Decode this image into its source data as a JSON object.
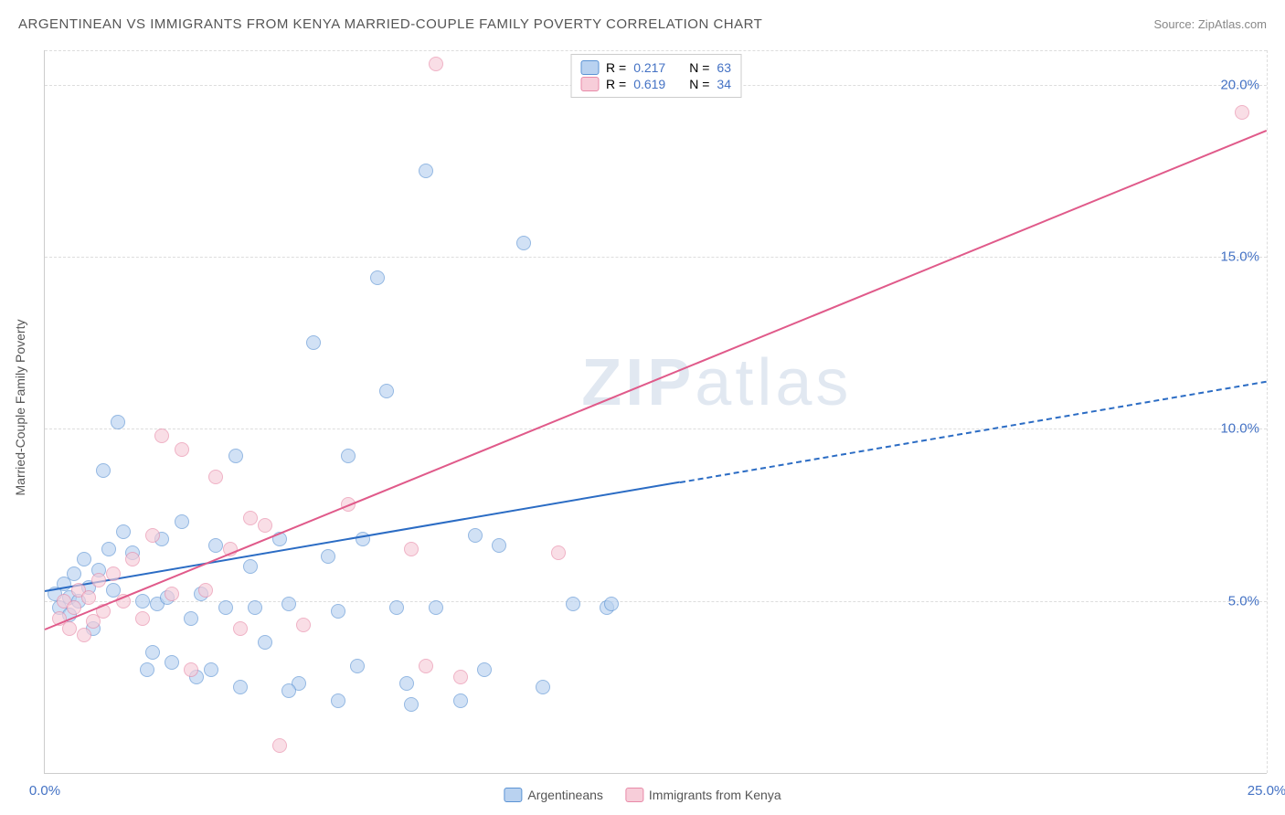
{
  "title": "ARGENTINEAN VS IMMIGRANTS FROM KENYA MARRIED-COUPLE FAMILY POVERTY CORRELATION CHART",
  "source": "Source: ZipAtlas.com",
  "ylabel": "Married-Couple Family Poverty",
  "watermark_a": "ZIP",
  "watermark_b": "atlas",
  "chart": {
    "type": "scatter",
    "xlim": [
      0,
      25
    ],
    "ylim": [
      0,
      21
    ],
    "x_ticks": [
      0,
      25
    ],
    "x_tick_labels": [
      "0.0%",
      "25.0%"
    ],
    "y_ticks": [
      5,
      10,
      15,
      20
    ],
    "y_tick_labels": [
      "5.0%",
      "10.0%",
      "15.0%",
      "20.0%"
    ],
    "grid_color": "#dddddd",
    "background_color": "#ffffff",
    "series": [
      {
        "id": "argentineans",
        "label": "Argentineans",
        "color_fill": "#b9d2f0",
        "color_stroke": "#5b93d4",
        "R": "0.217",
        "N": "63",
        "trend": {
          "x1": 0,
          "y1": 5.3,
          "x2": 25,
          "y2": 11.4,
          "solid_until_x": 13,
          "color": "#2b6cc4"
        },
        "points": [
          [
            0.2,
            5.2
          ],
          [
            0.3,
            4.8
          ],
          [
            0.4,
            5.5
          ],
          [
            0.5,
            5.1
          ],
          [
            0.5,
            4.6
          ],
          [
            0.6,
            5.8
          ],
          [
            0.7,
            5.0
          ],
          [
            0.8,
            6.2
          ],
          [
            0.9,
            5.4
          ],
          [
            1.0,
            4.2
          ],
          [
            1.1,
            5.9
          ],
          [
            1.2,
            8.8
          ],
          [
            1.3,
            6.5
          ],
          [
            1.4,
            5.3
          ],
          [
            1.5,
            10.2
          ],
          [
            1.6,
            7.0
          ],
          [
            1.8,
            6.4
          ],
          [
            2.0,
            5.0
          ],
          [
            2.1,
            3.0
          ],
          [
            2.2,
            3.5
          ],
          [
            2.3,
            4.9
          ],
          [
            2.4,
            6.8
          ],
          [
            2.5,
            5.1
          ],
          [
            2.6,
            3.2
          ],
          [
            2.8,
            7.3
          ],
          [
            3.0,
            4.5
          ],
          [
            3.1,
            2.8
          ],
          [
            3.2,
            5.2
          ],
          [
            3.4,
            3.0
          ],
          [
            3.5,
            6.6
          ],
          [
            3.7,
            4.8
          ],
          [
            3.9,
            9.2
          ],
          [
            4.0,
            2.5
          ],
          [
            4.2,
            6.0
          ],
          [
            4.5,
            3.8
          ],
          [
            4.8,
            6.8
          ],
          [
            5.0,
            4.9
          ],
          [
            5.2,
            2.6
          ],
          [
            5.5,
            12.5
          ],
          [
            5.8,
            6.3
          ],
          [
            6.0,
            4.7
          ],
          [
            6.2,
            9.2
          ],
          [
            6.4,
            3.1
          ],
          [
            6.5,
            6.8
          ],
          [
            6.8,
            14.4
          ],
          [
            7.0,
            11.1
          ],
          [
            7.2,
            4.8
          ],
          [
            7.5,
            2.0
          ],
          [
            7.8,
            17.5
          ],
          [
            8.0,
            4.8
          ],
          [
            8.5,
            2.1
          ],
          [
            8.8,
            6.9
          ],
          [
            9.0,
            3.0
          ],
          [
            9.3,
            6.6
          ],
          [
            9.8,
            15.4
          ],
          [
            10.2,
            2.5
          ],
          [
            10.8,
            4.9
          ],
          [
            11.5,
            4.8
          ],
          [
            11.6,
            4.9
          ],
          [
            7.4,
            2.6
          ],
          [
            6.0,
            2.1
          ],
          [
            5.0,
            2.4
          ],
          [
            4.3,
            4.8
          ]
        ]
      },
      {
        "id": "kenya",
        "label": "Immigrants from Kenya",
        "color_fill": "#f7cdd9",
        "color_stroke": "#e88aa8",
        "R": "0.619",
        "N": "34",
        "trend": {
          "x1": 0,
          "y1": 4.2,
          "x2": 25,
          "y2": 18.7,
          "solid_until_x": 25,
          "color": "#e05a8a"
        },
        "points": [
          [
            0.3,
            4.5
          ],
          [
            0.4,
            5.0
          ],
          [
            0.5,
            4.2
          ],
          [
            0.6,
            4.8
          ],
          [
            0.7,
            5.3
          ],
          [
            0.8,
            4.0
          ],
          [
            0.9,
            5.1
          ],
          [
            1.0,
            4.4
          ],
          [
            1.1,
            5.6
          ],
          [
            1.2,
            4.7
          ],
          [
            1.4,
            5.8
          ],
          [
            1.6,
            5.0
          ],
          [
            1.8,
            6.2
          ],
          [
            2.0,
            4.5
          ],
          [
            2.2,
            6.9
          ],
          [
            2.4,
            9.8
          ],
          [
            2.6,
            5.2
          ],
          [
            2.8,
            9.4
          ],
          [
            3.0,
            3.0
          ],
          [
            3.3,
            5.3
          ],
          [
            3.5,
            8.6
          ],
          [
            3.8,
            6.5
          ],
          [
            4.0,
            4.2
          ],
          [
            4.2,
            7.4
          ],
          [
            4.5,
            7.2
          ],
          [
            4.8,
            0.8
          ],
          [
            5.3,
            4.3
          ],
          [
            6.2,
            7.8
          ],
          [
            7.5,
            6.5
          ],
          [
            7.8,
            3.1
          ],
          [
            8.0,
            20.6
          ],
          [
            8.5,
            2.8
          ],
          [
            10.5,
            6.4
          ],
          [
            24.5,
            19.2
          ]
        ]
      }
    ]
  },
  "legend_top": {
    "rows": [
      {
        "swatch_fill": "#b9d2f0",
        "swatch_stroke": "#5b93d4",
        "r_label": "R =",
        "r_val": "0.217",
        "n_label": "N =",
        "n_val": "63"
      },
      {
        "swatch_fill": "#f7cdd9",
        "swatch_stroke": "#e88aa8",
        "r_label": "R =",
        "r_val": "0.619",
        "n_label": "N =",
        "n_val": "34"
      }
    ]
  }
}
